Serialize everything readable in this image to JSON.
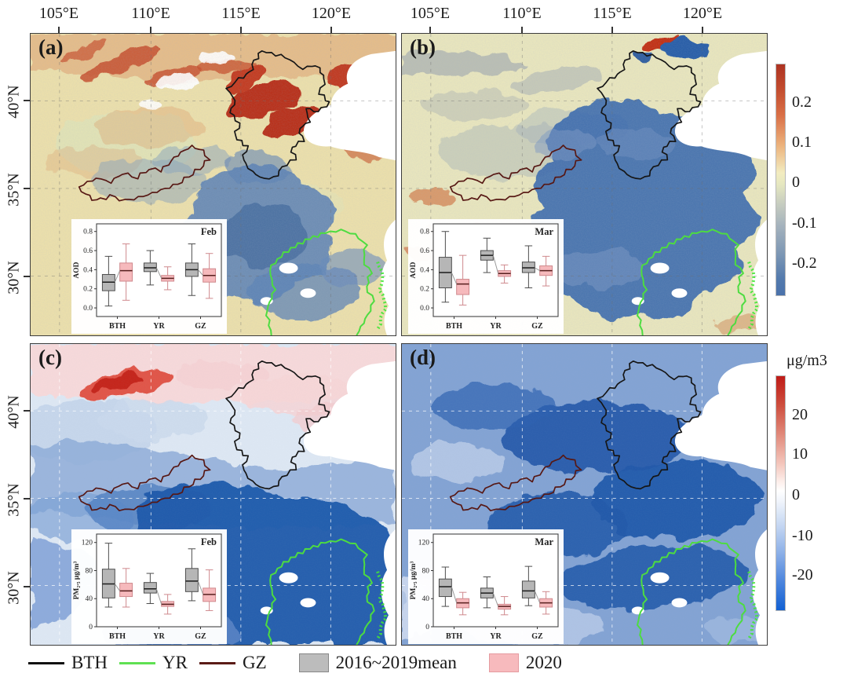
{
  "figure": {
    "panels": [
      {
        "label": "(a)"
      },
      {
        "label": "(b)"
      },
      {
        "label": "(c)"
      },
      {
        "label": "(d)"
      }
    ],
    "lon_ticks": [
      "105°E",
      "110°E",
      "115°E",
      "120°E"
    ],
    "lat_ticks": [
      "40°N",
      "35°N",
      "30°N"
    ]
  },
  "colorbars": [
    {
      "name": "aod-anomaly-colorbar",
      "unit": "",
      "ticks": [
        "0.2",
        "0.1",
        "0",
        "-0.1",
        "-0.2"
      ],
      "top_color": "#ad3322",
      "zero_color": "#f2ecc0",
      "bottom_color": "#4a72ab"
    },
    {
      "name": "pm25-anomaly-colorbar",
      "unit": "μg/m3",
      "ticks": [
        "20",
        "10",
        "0",
        "-10",
        "-20"
      ],
      "top_color": "#bf1b17",
      "zero_color": "#ffffff",
      "bottom_color": "#1261d3"
    }
  ],
  "legend": {
    "items": [
      {
        "label": "BTH",
        "swatch": "line",
        "color": "#111111"
      },
      {
        "label": "YR",
        "swatch": "line",
        "color": "#5fe052"
      },
      {
        "label": "GZ",
        "swatch": "line",
        "color": "#5a1b16"
      },
      {
        "label": "2016~2019mean",
        "swatch": "box",
        "color": "#bcbcbc",
        "border": "#878787"
      },
      {
        "label": "2020",
        "swatch": "box",
        "color": "#f7babd",
        "border": "#e59ba0"
      }
    ]
  },
  "chart_data": [
    {
      "panel": "a",
      "type": "boxplot",
      "inset_label": "Feb",
      "ylabel": "AOD",
      "ylim": [
        -0.09,
        0.88
      ],
      "yticks": [
        0.0,
        0.2,
        0.4,
        0.6,
        0.8
      ],
      "ytick_labels": [
        "0.0",
        "0.2",
        "0.4",
        "0.6",
        "0.8"
      ],
      "categories": [
        "BTH",
        "YR",
        "GZ"
      ],
      "series": [
        {
          "name": "2016~2019mean",
          "fill": "#b6b6b6",
          "stroke": "#4d4d4d",
          "median_color": "#1c1c1c",
          "boxes": [
            {
              "low": 0.02,
              "q1": 0.18,
              "median": 0.27,
              "q3": 0.35,
              "high": 0.54
            },
            {
              "low": 0.24,
              "q1": 0.38,
              "median": 0.42,
              "q3": 0.47,
              "high": 0.6
            },
            {
              "low": 0.13,
              "q1": 0.33,
              "median": 0.4,
              "q3": 0.47,
              "high": 0.67
            }
          ]
        },
        {
          "name": "2020",
          "fill": "#f6b9bc",
          "stroke": "#cf898d",
          "median_color": "#571f1e",
          "boxes": [
            {
              "low": 0.08,
              "q1": 0.28,
              "median": 0.39,
              "q3": 0.47,
              "high": 0.67
            },
            {
              "low": 0.19,
              "q1": 0.28,
              "median": 0.31,
              "q3": 0.34,
              "high": 0.43
            },
            {
              "low": 0.1,
              "q1": 0.27,
              "median": 0.34,
              "q3": 0.41,
              "high": 0.57
            }
          ]
        }
      ]
    },
    {
      "panel": "b",
      "type": "boxplot",
      "inset_label": "Mar",
      "ylabel": "AOD",
      "ylim": [
        -0.09,
        0.88
      ],
      "yticks": [
        0.0,
        0.2,
        0.4,
        0.6,
        0.8
      ],
      "ytick_labels": [
        "0.0",
        "0.2",
        "0.4",
        "0.6",
        "0.8"
      ],
      "categories": [
        "BTH",
        "YR",
        "GZ"
      ],
      "series": [
        {
          "name": "2016~2019mean",
          "fill": "#b6b6b6",
          "stroke": "#4d4d4d",
          "median_color": "#1c1c1c",
          "boxes": [
            {
              "low": 0.06,
              "q1": 0.21,
              "median": 0.37,
              "q3": 0.53,
              "high": 0.8
            },
            {
              "low": 0.37,
              "q1": 0.5,
              "median": 0.55,
              "q3": 0.6,
              "high": 0.73
            },
            {
              "low": 0.21,
              "q1": 0.37,
              "median": 0.42,
              "q3": 0.48,
              "high": 0.65
            }
          ]
        },
        {
          "name": "2020",
          "fill": "#f6b9bc",
          "stroke": "#cf898d",
          "median_color": "#571f1e",
          "boxes": [
            {
              "low": 0.03,
              "q1": 0.14,
              "median": 0.25,
              "q3": 0.3,
              "high": 0.55
            },
            {
              "low": 0.26,
              "q1": 0.33,
              "median": 0.36,
              "q3": 0.39,
              "high": 0.45
            },
            {
              "low": 0.23,
              "q1": 0.34,
              "median": 0.39,
              "q3": 0.44,
              "high": 0.54
            }
          ]
        }
      ]
    },
    {
      "panel": "c",
      "type": "boxplot",
      "inset_label": "Feb",
      "ylabel": "PM₂.₅ μg/m³",
      "ylim": [
        0,
        132
      ],
      "yticks": [
        0,
        40,
        80,
        120
      ],
      "ytick_labels": [
        "0",
        "40",
        "80",
        "120"
      ],
      "categories": [
        "BTH",
        "YR",
        "GZ"
      ],
      "series": [
        {
          "name": "2016~2019mean",
          "fill": "#b6b6b6",
          "stroke": "#4d4d4d",
          "median_color": "#1c1c1c",
          "boxes": [
            {
              "low": 28,
              "q1": 41,
              "median": 61,
              "q3": 82,
              "high": 119
            },
            {
              "low": 33,
              "q1": 48,
              "median": 54,
              "q3": 63,
              "high": 76
            },
            {
              "low": 37,
              "q1": 50,
              "median": 65,
              "q3": 83,
              "high": 111
            }
          ]
        },
        {
          "name": "2020",
          "fill": "#f6b9bc",
          "stroke": "#cf898d",
          "median_color": "#571f1e",
          "boxes": [
            {
              "low": 28,
              "q1": 43,
              "median": 51,
              "q3": 62,
              "high": 83
            },
            {
              "low": 18,
              "q1": 29,
              "median": 32,
              "q3": 36,
              "high": 46
            },
            {
              "low": 23,
              "q1": 36,
              "median": 46,
              "q3": 55,
              "high": 81
            }
          ]
        }
      ]
    },
    {
      "panel": "d",
      "type": "boxplot",
      "inset_label": "Mar",
      "ylabel": "PM₂.₅ μg/m³",
      "ylim": [
        0,
        132
      ],
      "yticks": [
        0,
        40,
        80,
        120
      ],
      "ytick_labels": [
        "0",
        "40",
        "80",
        "120"
      ],
      "categories": [
        "BTH",
        "YR",
        "GZ"
      ],
      "series": [
        {
          "name": "2016~2019mean",
          "fill": "#b6b6b6",
          "stroke": "#4d4d4d",
          "median_color": "#1c1c1c",
          "boxes": [
            {
              "low": 29,
              "q1": 43,
              "median": 57,
              "q3": 68,
              "high": 85
            },
            {
              "low": 27,
              "q1": 41,
              "median": 48,
              "q3": 55,
              "high": 71
            },
            {
              "low": 30,
              "q1": 41,
              "median": 51,
              "q3": 65,
              "high": 86
            }
          ]
        },
        {
          "name": "2020",
          "fill": "#f6b9bc",
          "stroke": "#cf898d",
          "median_color": "#571f1e",
          "boxes": [
            {
              "low": 17,
              "q1": 27,
              "median": 34,
              "q3": 40,
              "high": 49
            },
            {
              "low": 17,
              "q1": 25,
              "median": 29,
              "q3": 32,
              "high": 43
            },
            {
              "low": 18,
              "q1": 28,
              "median": 34,
              "q3": 40,
              "high": 50
            }
          ]
        }
      ]
    }
  ]
}
